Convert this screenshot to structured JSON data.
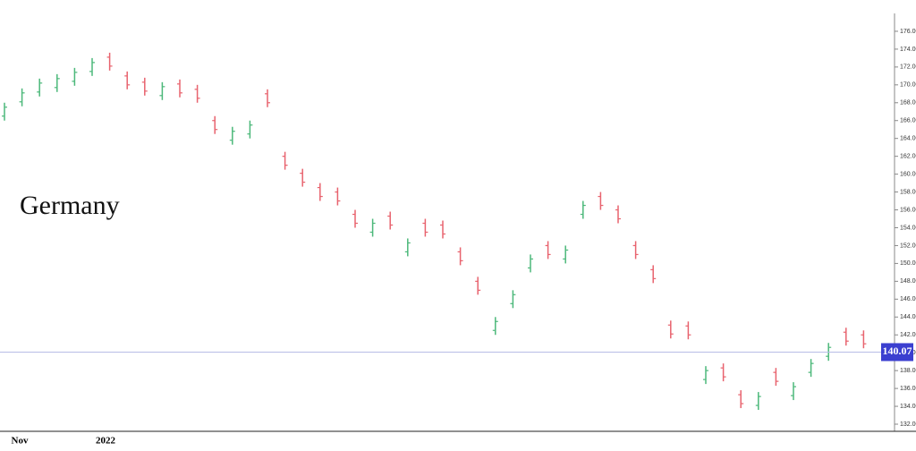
{
  "chart_data": {
    "type": "ohlc",
    "title": "Germany",
    "x_axis_labels": [
      "Nov",
      "2022"
    ],
    "up_color": "#4cb87a",
    "down_color": "#e8636e",
    "open": [
      166.5,
      168.1,
      169.2,
      169.7,
      170.4,
      171.5,
      173.1,
      171.0,
      170.3,
      168.8,
      170.1,
      169.5,
      166.0,
      163.8,
      164.5,
      169.0,
      162.0,
      160.1,
      158.5,
      158.0,
      155.5,
      153.5,
      155.3,
      151.3,
      154.5,
      154.3,
      151.3,
      148.0,
      142.5,
      145.5,
      149.5,
      152.0,
      150.5,
      155.5,
      157.5,
      156.0,
      152.0,
      149.3,
      143.1,
      143.0,
      137.0,
      138.3,
      135.3,
      134.1,
      137.8,
      135.2,
      137.8,
      139.6,
      142.3,
      142.0
    ],
    "high": [
      168.0,
      169.6,
      170.7,
      171.2,
      171.9,
      173.0,
      173.6,
      171.5,
      170.8,
      170.3,
      170.6,
      170.0,
      166.5,
      165.3,
      166.0,
      169.5,
      162.5,
      160.6,
      159.0,
      158.5,
      156.0,
      155.0,
      155.8,
      152.8,
      155.0,
      154.8,
      151.8,
      148.5,
      144.0,
      147.0,
      151.0,
      152.5,
      152.0,
      157.0,
      158.0,
      156.5,
      152.5,
      149.8,
      143.6,
      143.5,
      138.5,
      138.8,
      135.8,
      135.6,
      138.3,
      136.7,
      139.3,
      141.1,
      142.8,
      142.5
    ],
    "low": [
      166.0,
      167.6,
      168.7,
      169.2,
      169.9,
      171.0,
      171.6,
      169.5,
      168.8,
      168.3,
      168.6,
      168.0,
      164.5,
      163.3,
      164.0,
      167.5,
      160.5,
      158.6,
      157.0,
      156.5,
      154.0,
      153.0,
      153.8,
      150.8,
      153.0,
      152.8,
      149.8,
      146.5,
      142.0,
      145.0,
      149.0,
      150.5,
      150.0,
      155.0,
      156.0,
      154.5,
      150.5,
      147.8,
      141.6,
      141.5,
      136.5,
      136.8,
      133.8,
      133.6,
      136.3,
      134.7,
      137.3,
      139.1,
      140.8,
      140.5
    ],
    "close": [
      167.5,
      169.1,
      170.2,
      170.7,
      171.4,
      172.5,
      172.1,
      170.0,
      169.3,
      169.8,
      169.1,
      168.5,
      165.0,
      164.8,
      165.5,
      168.0,
      161.0,
      159.1,
      157.5,
      157.0,
      154.5,
      154.5,
      154.3,
      152.3,
      153.5,
      153.3,
      150.3,
      147.0,
      143.5,
      146.5,
      150.5,
      151.0,
      151.5,
      156.5,
      156.5,
      155.0,
      151.0,
      148.3,
      142.1,
      142.0,
      138.0,
      137.3,
      134.3,
      135.1,
      136.8,
      136.2,
      138.8,
      140.6,
      141.3,
      141.0
    ],
    "last_price": {
      "value": 140.07,
      "label": "140.07"
    },
    "last_price_color": "#3b3fd0",
    "ylim": [
      131.2,
      178
    ],
    "yticks": [
      {
        "value": 132,
        "label": "132.00"
      },
      {
        "value": 134,
        "label": "134.00"
      },
      {
        "value": 136,
        "label": "136.00"
      },
      {
        "value": 138,
        "label": "138.00"
      },
      {
        "value": 140,
        "label": "140.00"
      },
      {
        "value": 142,
        "label": "142.00"
      },
      {
        "value": 144,
        "label": "144.00"
      },
      {
        "value": 146,
        "label": "146.00"
      },
      {
        "value": 148,
        "label": "148.00"
      },
      {
        "value": 150,
        "label": "150.00"
      },
      {
        "value": 152,
        "label": "152.00"
      },
      {
        "value": 154,
        "label": "154.00"
      },
      {
        "value": 156,
        "label": "156.00"
      },
      {
        "value": 158,
        "label": "158.00"
      },
      {
        "value": 160,
        "label": "160.00"
      },
      {
        "value": 162,
        "label": "162.00"
      },
      {
        "value": 164,
        "label": "164.00"
      },
      {
        "value": 166,
        "label": "166.00"
      },
      {
        "value": 168,
        "label": "168.00"
      },
      {
        "value": 170,
        "label": "170.00"
      },
      {
        "value": 172,
        "label": "172.00"
      },
      {
        "value": 174,
        "label": "174.00"
      },
      {
        "value": 176,
        "label": "176.00"
      }
    ]
  }
}
